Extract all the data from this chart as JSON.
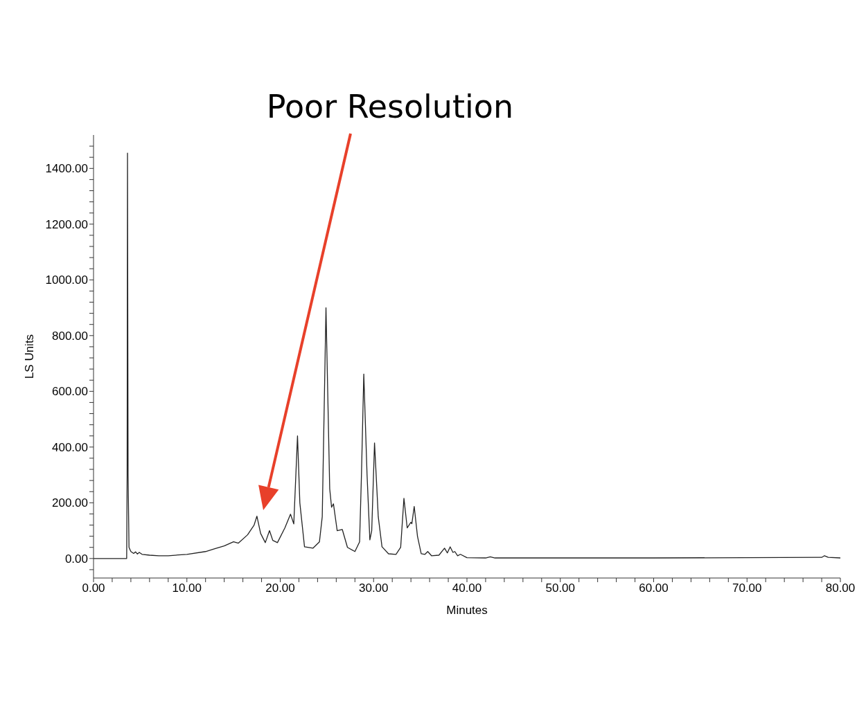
{
  "chart_data": {
    "type": "line",
    "xlabel": "Minutes",
    "ylabel": "LS Units",
    "annotations": [
      "Poor Resolution"
    ],
    "x": [
      0,
      3.55,
      3.6,
      3.64,
      3.7,
      3.8,
      4.0,
      4.3,
      4.5,
      4.7,
      4.9,
      5.2,
      6,
      7,
      8,
      10,
      12,
      13,
      14,
      15,
      15.5,
      16.5,
      17.2,
      17.5,
      17.9,
      18.4,
      18.85,
      19.2,
      19.7,
      20.5,
      21.1,
      21.45,
      21.85,
      22.1,
      22.6,
      23.5,
      24.2,
      24.5,
      24.9,
      25.3,
      25.5,
      25.7,
      26.1,
      26.65,
      27.2,
      28,
      28.5,
      28.7,
      28.95,
      29.3,
      29.6,
      29.8,
      30.1,
      30.5,
      30.9,
      31.6,
      32.4,
      32.9,
      33.25,
      33.6,
      33.99,
      34.1,
      34.35,
      34.7,
      35.1,
      35.5,
      35.8,
      36.2,
      37,
      37.6,
      37.9,
      38.2,
      38.5,
      38.7,
      39.0,
      39.3,
      40,
      42,
      42.5,
      43,
      60,
      78,
      78.3,
      78.7,
      80
    ],
    "series": [
      {
        "color": "#222222",
        "values": [
          0,
          0,
          300,
          1455,
          300,
          40,
          25,
          18,
          24,
          16,
          22,
          15,
          12,
          10,
          10,
          15,
          25,
          35,
          45,
          60,
          55,
          85,
          120,
          152,
          90,
          57,
          100,
          65,
          57,
          110,
          159,
          124,
          440,
          200,
          42,
          37,
          60,
          150,
          900,
          250,
          184,
          196,
          100,
          104,
          40,
          25,
          60,
          300,
          662,
          300,
          67,
          100,
          415,
          150,
          42,
          17,
          15,
          40,
          216,
          110,
          130,
          125,
          187,
          80,
          17,
          15,
          25,
          10,
          12,
          37,
          20,
          42,
          22,
          25,
          10,
          15,
          3,
          2,
          6,
          2,
          2,
          4,
          10,
          4,
          2
        ]
      }
    ],
    "xlim": [
      0,
      80
    ],
    "xticks": [
      {
        "value": 0,
        "label": "0.00"
      },
      {
        "value": 2,
        "label": null
      },
      {
        "value": 4,
        "label": null
      },
      {
        "value": 6,
        "label": null
      },
      {
        "value": 8,
        "label": null
      },
      {
        "value": 10,
        "label": "10.00"
      },
      {
        "value": 12,
        "label": null
      },
      {
        "value": 14,
        "label": null
      },
      {
        "value": 16,
        "label": null
      },
      {
        "value": 18,
        "label": null
      },
      {
        "value": 20,
        "label": "20.00"
      },
      {
        "value": 22,
        "label": null
      },
      {
        "value": 24,
        "label": null
      },
      {
        "value": 26,
        "label": null
      },
      {
        "value": 28,
        "label": null
      },
      {
        "value": 30,
        "label": "30.00"
      },
      {
        "value": 32,
        "label": null
      },
      {
        "value": 34,
        "label": null
      },
      {
        "value": 36,
        "label": null
      },
      {
        "value": 38,
        "label": null
      },
      {
        "value": 40,
        "label": "40.00"
      },
      {
        "value": 42,
        "label": null
      },
      {
        "value": 44,
        "label": null
      },
      {
        "value": 46,
        "label": null
      },
      {
        "value": 48,
        "label": null
      },
      {
        "value": 50,
        "label": "50.00"
      },
      {
        "value": 52,
        "label": null
      },
      {
        "value": 54,
        "label": null
      },
      {
        "value": 56,
        "label": null
      },
      {
        "value": 58,
        "label": null
      },
      {
        "value": 60,
        "label": "60.00"
      },
      {
        "value": 62,
        "label": null
      },
      {
        "value": 64,
        "label": null
      },
      {
        "value": 66,
        "label": null
      },
      {
        "value": 68,
        "label": null
      },
      {
        "value": 70,
        "label": "70.00"
      },
      {
        "value": 72,
        "label": null
      },
      {
        "value": 74,
        "label": null
      },
      {
        "value": 76,
        "label": null
      },
      {
        "value": 78,
        "label": null
      },
      {
        "value": 80,
        "label": "80.00"
      }
    ],
    "ylim": [
      -70,
      1520
    ],
    "yticks": [
      {
        "value": -40,
        "label": null
      },
      {
        "value": 0,
        "label": "0.00"
      },
      {
        "value": 40,
        "label": null
      },
      {
        "value": 80,
        "label": null
      },
      {
        "value": 120,
        "label": null
      },
      {
        "value": 160,
        "label": null
      },
      {
        "value": 200,
        "label": "200.00"
      },
      {
        "value": 240,
        "label": null
      },
      {
        "value": 280,
        "label": null
      },
      {
        "value": 320,
        "label": null
      },
      {
        "value": 360,
        "label": null
      },
      {
        "value": 400,
        "label": "400.00"
      },
      {
        "value": 440,
        "label": null
      },
      {
        "value": 480,
        "label": null
      },
      {
        "value": 520,
        "label": null
      },
      {
        "value": 560,
        "label": null
      },
      {
        "value": 600,
        "label": "600.00"
      },
      {
        "value": 640,
        "label": null
      },
      {
        "value": 680,
        "label": null
      },
      {
        "value": 720,
        "label": null
      },
      {
        "value": 760,
        "label": null
      },
      {
        "value": 800,
        "label": "800.00"
      },
      {
        "value": 840,
        "label": null
      },
      {
        "value": 880,
        "label": null
      },
      {
        "value": 920,
        "label": null
      },
      {
        "value": 960,
        "label": null
      },
      {
        "value": 1000,
        "label": "1000.00"
      },
      {
        "value": 1040,
        "label": null
      },
      {
        "value": 1080,
        "label": null
      },
      {
        "value": 1120,
        "label": null
      },
      {
        "value": 1160,
        "label": null
      },
      {
        "value": 1200,
        "label": "1200.00"
      },
      {
        "value": 1240,
        "label": null
      },
      {
        "value": 1280,
        "label": null
      },
      {
        "value": 1320,
        "label": null
      },
      {
        "value": 1360,
        "label": null
      },
      {
        "value": 1400,
        "label": "1400.00"
      },
      {
        "value": 1440,
        "label": null
      },
      {
        "value": 1480,
        "label": null
      }
    ],
    "grid": false,
    "legend": false,
    "marker": "none",
    "line_style": "solid"
  }
}
